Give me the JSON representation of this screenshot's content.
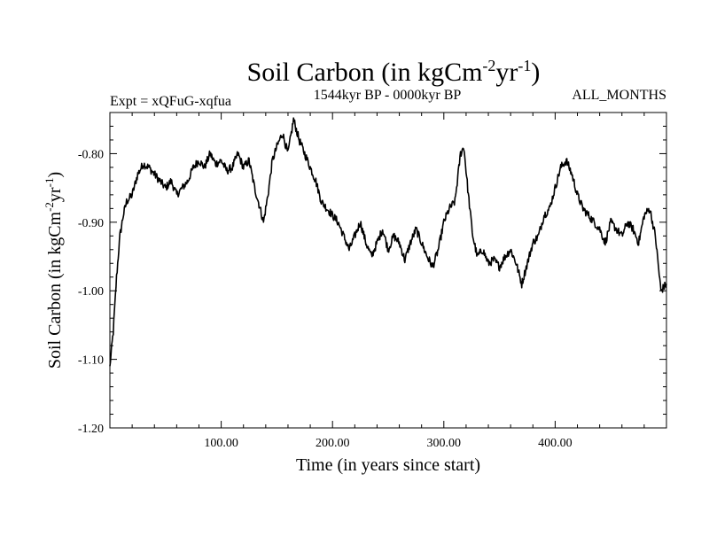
{
  "chart_data": {
    "type": "line",
    "title": "Soil Carbon (in kgCm",
    "title_sup1": "-2",
    "title_mid": "yr",
    "title_sup2": "-1",
    "title_end": ")",
    "subtitle_left": "Expt = xQFuG-xqfua",
    "subtitle_center": "1544kyr BP - 0000kyr BP",
    "subtitle_right": "ALL_MONTHS",
    "xlabel": "Time (in years since start)",
    "ylabel": "Soil Carbon (in kgCm",
    "ylabel_sup1": "-2",
    "ylabel_mid": "yr",
    "ylabel_sup2": "-1",
    "ylabel_end": ")",
    "xlim": [
      0,
      500
    ],
    "ylim": [
      -1.2,
      -0.74
    ],
    "x_ticks": [
      100,
      200,
      300,
      400
    ],
    "x_tick_labels": [
      "100.00",
      "200.00",
      "300.00",
      "400.00"
    ],
    "y_ticks": [
      -1.2,
      -1.1,
      -1.0,
      -0.9,
      -0.8
    ],
    "y_tick_labels": [
      "-1.20",
      "-1.10",
      "-1.00",
      "-0.90",
      "-0.80"
    ],
    "x_minor_step": 20,
    "y_minor_step": 0.02,
    "grid": false,
    "series": [
      {
        "name": "Soil Carbon",
        "color": "#000000",
        "x": [
          0,
          3,
          6,
          9,
          12,
          15,
          20,
          25,
          30,
          35,
          40,
          45,
          50,
          55,
          60,
          65,
          70,
          75,
          80,
          85,
          90,
          95,
          100,
          105,
          110,
          115,
          120,
          125,
          130,
          135,
          138,
          142,
          146,
          150,
          155,
          160,
          165,
          170,
          175,
          180,
          185,
          190,
          195,
          200,
          205,
          210,
          215,
          220,
          225,
          230,
          235,
          240,
          245,
          250,
          255,
          260,
          265,
          270,
          275,
          280,
          285,
          290,
          295,
          300,
          305,
          310,
          315,
          318,
          322,
          326,
          330,
          335,
          340,
          345,
          350,
          355,
          360,
          365,
          370,
          375,
          380,
          385,
          390,
          395,
          400,
          405,
          410,
          415,
          420,
          425,
          430,
          435,
          440,
          445,
          450,
          455,
          460,
          465,
          470,
          475,
          480,
          485,
          490,
          495,
          500
        ],
        "y": [
          -1.11,
          -1.06,
          -0.98,
          -0.92,
          -0.89,
          -0.87,
          -0.86,
          -0.83,
          -0.815,
          -0.82,
          -0.83,
          -0.84,
          -0.85,
          -0.84,
          -0.86,
          -0.85,
          -0.84,
          -0.82,
          -0.81,
          -0.82,
          -0.8,
          -0.815,
          -0.81,
          -0.825,
          -0.82,
          -0.8,
          -0.82,
          -0.81,
          -0.85,
          -0.88,
          -0.9,
          -0.86,
          -0.81,
          -0.79,
          -0.77,
          -0.8,
          -0.75,
          -0.78,
          -0.8,
          -0.82,
          -0.84,
          -0.87,
          -0.88,
          -0.89,
          -0.9,
          -0.92,
          -0.94,
          -0.92,
          -0.9,
          -0.93,
          -0.95,
          -0.93,
          -0.91,
          -0.94,
          -0.92,
          -0.93,
          -0.955,
          -0.93,
          -0.91,
          -0.93,
          -0.95,
          -0.965,
          -0.94,
          -0.9,
          -0.88,
          -0.87,
          -0.8,
          -0.79,
          -0.86,
          -0.92,
          -0.95,
          -0.94,
          -0.96,
          -0.955,
          -0.965,
          -0.95,
          -0.94,
          -0.96,
          -0.99,
          -0.96,
          -0.93,
          -0.92,
          -0.89,
          -0.88,
          -0.85,
          -0.82,
          -0.81,
          -0.83,
          -0.86,
          -0.88,
          -0.89,
          -0.9,
          -0.91,
          -0.93,
          -0.9,
          -0.91,
          -0.92,
          -0.9,
          -0.91,
          -0.93,
          -0.89,
          -0.88,
          -0.92,
          -1.0,
          -0.99
        ]
      }
    ]
  }
}
